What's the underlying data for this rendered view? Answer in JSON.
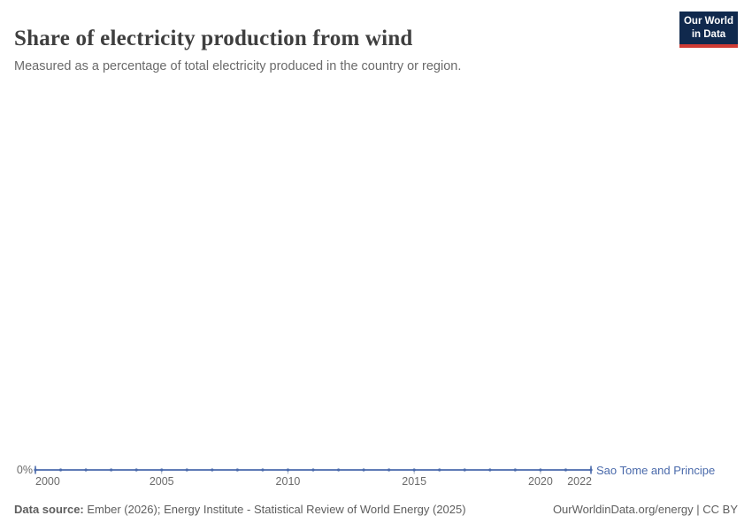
{
  "header": {
    "title": "Share of electricity production from wind",
    "subtitle": "Measured as a percentage of total electricity produced in the country or region."
  },
  "logo": {
    "line1": "Our World",
    "line2": "in Data"
  },
  "chart_data": {
    "type": "line",
    "title": "Share of electricity production from wind",
    "x": [
      2000,
      2001,
      2002,
      2003,
      2004,
      2005,
      2006,
      2007,
      2008,
      2009,
      2010,
      2011,
      2012,
      2013,
      2014,
      2015,
      2016,
      2017,
      2018,
      2019,
      2020,
      2021,
      2022
    ],
    "series": [
      {
        "name": "Sao Tome and Principe",
        "values": [
          0,
          0,
          0,
          0,
          0,
          0,
          0,
          0,
          0,
          0,
          0,
          0,
          0,
          0,
          0,
          0,
          0,
          0,
          0,
          0,
          0,
          0,
          0
        ]
      }
    ],
    "x_ticks": [
      2000,
      2005,
      2010,
      2015,
      2020,
      2022
    ],
    "y_ticks": [
      "0%"
    ],
    "xlim": [
      2000,
      2022
    ],
    "ylim": [
      0,
      0
    ],
    "unit": "%",
    "grid": false,
    "legend_position": "end-of-line"
  },
  "legend": {
    "label": "Sao Tome and Principe"
  },
  "footer": {
    "datasource_label": "Data source:",
    "datasource_text": " Ember (2026); Energy Institute - Statistical Review of World Energy (2025)",
    "link": "OurWorldinData.org/energy | CC BY"
  },
  "colors": {
    "line": "#4a6aab",
    "axis_tick": "#aab4c4",
    "title": "#3f3f3f",
    "subtitle": "#6a6a6a",
    "axis_text": "#6b6b6b",
    "logo_bg": "#10294d",
    "logo_red": "#cf3b34"
  }
}
